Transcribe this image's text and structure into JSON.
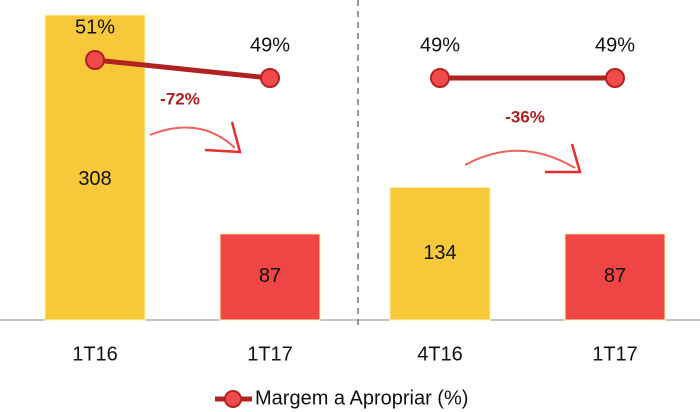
{
  "chart_data": [
    {
      "type": "bar",
      "categories": [
        "1T16",
        "1T17"
      ],
      "values": [
        308,
        87
      ],
      "colors": [
        "#f7c93a",
        "#f04545"
      ],
      "series": [
        {
          "name": "Margem a Apropriar (%)",
          "color": "#b22222",
          "values": [
            51,
            49
          ],
          "value_labels": [
            "51%",
            "49%"
          ]
        }
      ],
      "annotation": "-72%"
    },
    {
      "type": "bar",
      "categories": [
        "4T16",
        "1T17"
      ],
      "values": [
        134,
        87
      ],
      "colors": [
        "#f7c93a",
        "#f04545"
      ],
      "series": [
        {
          "color": "#b22222",
          "values": [
            49,
            49
          ],
          "value_labels": [
            "49%",
            "49%"
          ]
        }
      ],
      "annotation": "-36%"
    }
  ]
}
